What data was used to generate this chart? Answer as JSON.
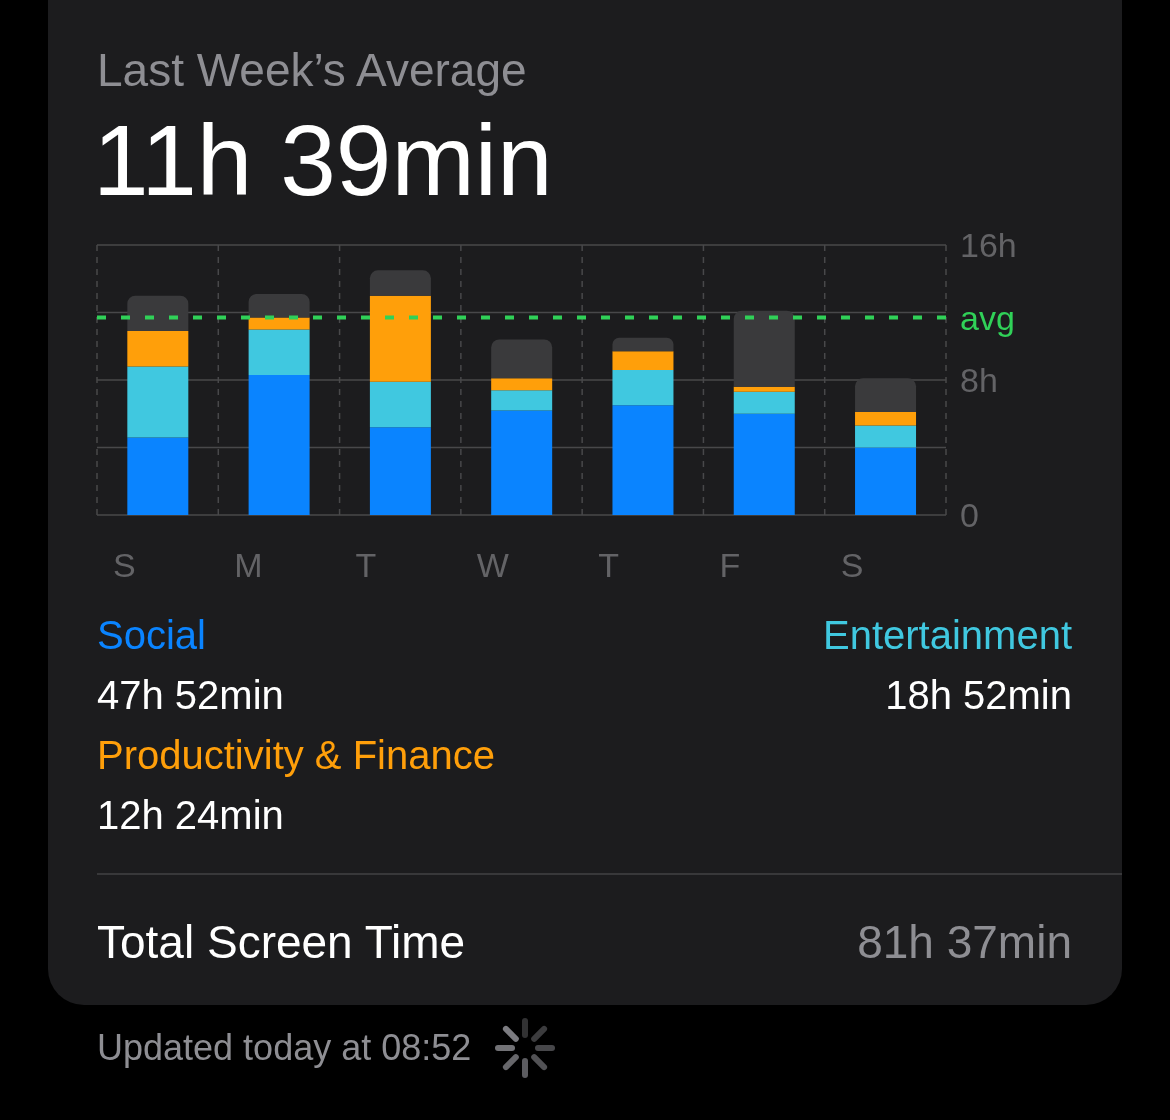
{
  "chart_data": {
    "type": "bar",
    "title": "Last Week’s Average",
    "subtitle": "11h 39min",
    "categories": [
      "S",
      "M",
      "T",
      "W",
      "T",
      "F",
      "S"
    ],
    "series": [
      {
        "name": "Social",
        "color": "#0a84ff",
        "values": [
          4.6,
          8.3,
          5.2,
          6.2,
          6.5,
          6.0,
          4.0
        ]
      },
      {
        "name": "Entertainment",
        "color": "#40c8e0",
        "values": [
          4.2,
          2.7,
          2.7,
          1.2,
          2.1,
          1.3,
          1.3
        ]
      },
      {
        "name": "Productivity & Finance",
        "color": "#ff9f0a",
        "values": [
          2.1,
          0.7,
          5.1,
          0.7,
          1.1,
          0.3,
          0.8
        ]
      },
      {
        "color": "#3a3a3c",
        "values": [
          2.1,
          1.4,
          1.5,
          2.3,
          0.8,
          4.5,
          2.0
        ]
      }
    ],
    "stacked": true,
    "ylim": [
      0,
      16
    ],
    "yticks": [
      0,
      {
        "value": 4,
        "label": null
      },
      {
        "value": 8,
        "label": "8h"
      },
      {
        "value": 12,
        "label": null
      },
      {
        "value": 16,
        "label": "16h"
      }
    ],
    "grid": true,
    "legend": "bottom",
    "ref_lines": [
      {
        "axis": "y",
        "value": 11.7,
        "label": "avg",
        "color": "#30d158",
        "line_style": "dashed"
      }
    ],
    "annotations": [
      "47h 52min",
      "18h 52min",
      "12h 24min",
      "Total Screen Time",
      "81h 37min",
      "Updated today at 08:52"
    ]
  }
}
